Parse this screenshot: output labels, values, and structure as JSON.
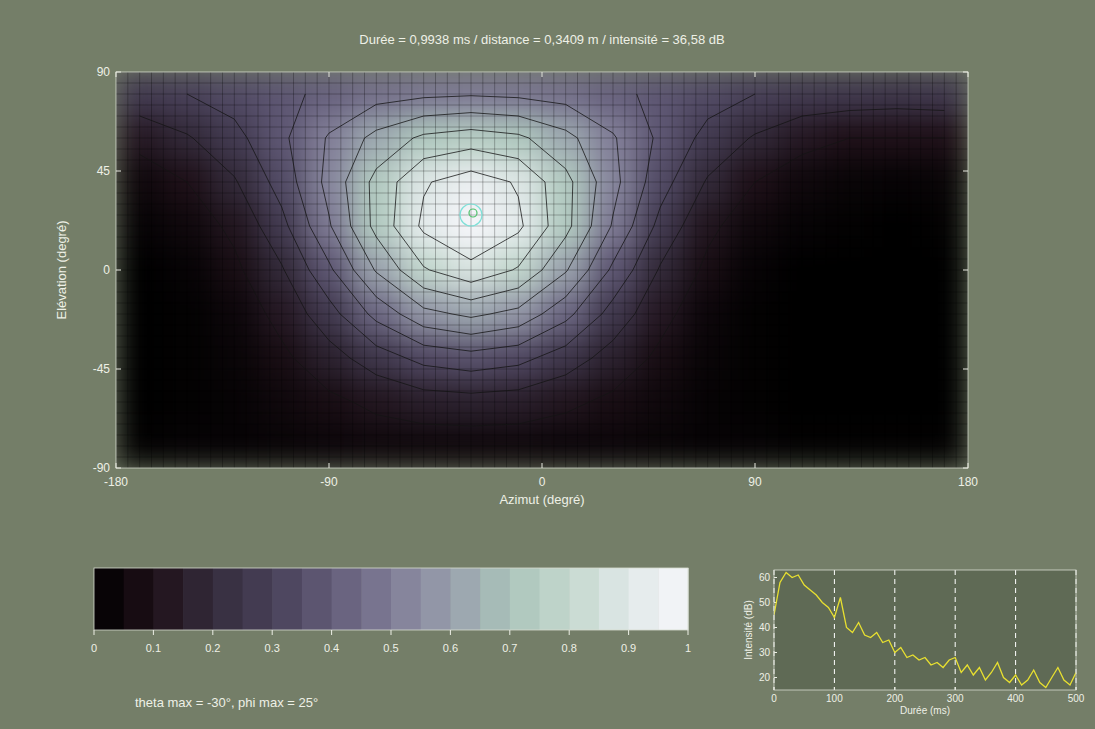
{
  "chart_data": {
    "type": "heatmap",
    "title": "Durée = 0,9938 ms / distance = 0,3409 m / intensité = 36,58 dB",
    "x_label": "Azimut (degré)",
    "y_label": "Elévation (degré)",
    "xlim": [
      -180,
      180
    ],
    "ylim": [
      -90,
      90
    ],
    "xticks": [
      -180,
      -90,
      0,
      90,
      180
    ],
    "yticks": [
      -90,
      -45,
      0,
      45,
      90
    ],
    "x": [
      -170,
      -150,
      -130,
      -110,
      -90,
      -70,
      -50,
      -30,
      -10,
      10,
      30,
      50,
      70,
      90,
      110,
      130,
      150,
      170
    ],
    "y": [
      80,
      60,
      40,
      20,
      0,
      -20,
      -40,
      -60,
      -80
    ],
    "cells": [
      [
        0.27,
        0.3,
        0.34,
        0.38,
        0.42,
        0.46,
        0.48,
        0.49,
        0.48,
        0.46,
        0.42,
        0.38,
        0.34,
        0.3,
        0.27,
        0.26,
        0.25,
        0.26
      ],
      [
        0.13,
        0.19,
        0.27,
        0.38,
        0.51,
        0.63,
        0.72,
        0.75,
        0.72,
        0.63,
        0.51,
        0.38,
        0.27,
        0.19,
        0.13,
        0.1,
        0.1,
        0.1
      ],
      [
        0.05,
        0.1,
        0.19,
        0.34,
        0.53,
        0.73,
        0.89,
        0.95,
        0.89,
        0.73,
        0.53,
        0.34,
        0.19,
        0.1,
        0.05,
        0.03,
        0.02,
        0.03
      ],
      [
        0.02,
        0.05,
        0.12,
        0.27,
        0.49,
        0.73,
        0.92,
        1.0,
        0.92,
        0.73,
        0.49,
        0.27,
        0.12,
        0.05,
        0.02,
        0.01,
        0.0,
        0.01
      ],
      [
        0.0,
        0.02,
        0.08,
        0.19,
        0.38,
        0.61,
        0.79,
        0.87,
        0.79,
        0.61,
        0.38,
        0.19,
        0.08,
        0.02,
        0.0,
        0.0,
        0.0,
        0.0
      ],
      [
        0.0,
        0.01,
        0.04,
        0.13,
        0.26,
        0.43,
        0.57,
        0.62,
        0.57,
        0.43,
        0.26,
        0.13,
        0.04,
        0.01,
        0.0,
        0.0,
        0.0,
        0.0
      ],
      [
        0.0,
        0.01,
        0.03,
        0.08,
        0.16,
        0.25,
        0.33,
        0.36,
        0.33,
        0.25,
        0.16,
        0.08,
        0.03,
        0.01,
        0.0,
        0.0,
        0.0,
        0.0
      ],
      [
        0.0,
        0.01,
        0.02,
        0.05,
        0.08,
        0.12,
        0.15,
        0.16,
        0.15,
        0.12,
        0.08,
        0.05,
        0.02,
        0.01,
        0.0,
        0.0,
        0.0,
        0.0
      ],
      [
        0.01,
        0.02,
        0.02,
        0.03,
        0.04,
        0.05,
        0.05,
        0.05,
        0.05,
        0.04,
        0.04,
        0.03,
        0.02,
        0.02,
        0.01,
        0.01,
        0.01,
        0.01
      ]
    ],
    "colorbar": {
      "range": [
        0,
        1
      ],
      "ticks": [
        0,
        0.1,
        0.2,
        0.3,
        0.4,
        0.5,
        0.6,
        0.7,
        0.8,
        0.9,
        1
      ]
    },
    "max_point": {
      "x": -30,
      "y": 25,
      "label": "theta max = -30°, phi max = 25°"
    },
    "inset": {
      "type": "line",
      "x_label": "Durée (ms)",
      "y_label": "Intensité (dB)",
      "x": [
        0,
        10,
        20,
        30,
        40,
        50,
        60,
        70,
        80,
        90,
        100,
        110,
        120,
        130,
        140,
        150,
        160,
        170,
        180,
        190,
        200,
        210,
        220,
        230,
        240,
        250,
        260,
        270,
        280,
        290,
        300,
        310,
        320,
        330,
        340,
        350,
        360,
        370,
        380,
        390,
        400,
        410,
        420,
        430,
        440,
        450,
        460,
        470,
        480,
        490,
        500
      ],
      "values": [
        45,
        58,
        62,
        60,
        61,
        57,
        55,
        53,
        50,
        48,
        44,
        52,
        40,
        38,
        42,
        37,
        36,
        38,
        34,
        35,
        30,
        32,
        28,
        29,
        27,
        28,
        25,
        26,
        24,
        27,
        28,
        22,
        25,
        21,
        24,
        19,
        22,
        26,
        20,
        18,
        21,
        17,
        19,
        23,
        18,
        16,
        20,
        24,
        19,
        17,
        22
      ],
      "color": "#e8e030",
      "xlim": [
        0,
        500
      ],
      "ylim": [
        15,
        63
      ],
      "xticks": [
        0,
        100,
        200,
        300,
        400,
        500
      ],
      "yticks": [
        20,
        30,
        40,
        50,
        60
      ],
      "grid": true
    }
  }
}
